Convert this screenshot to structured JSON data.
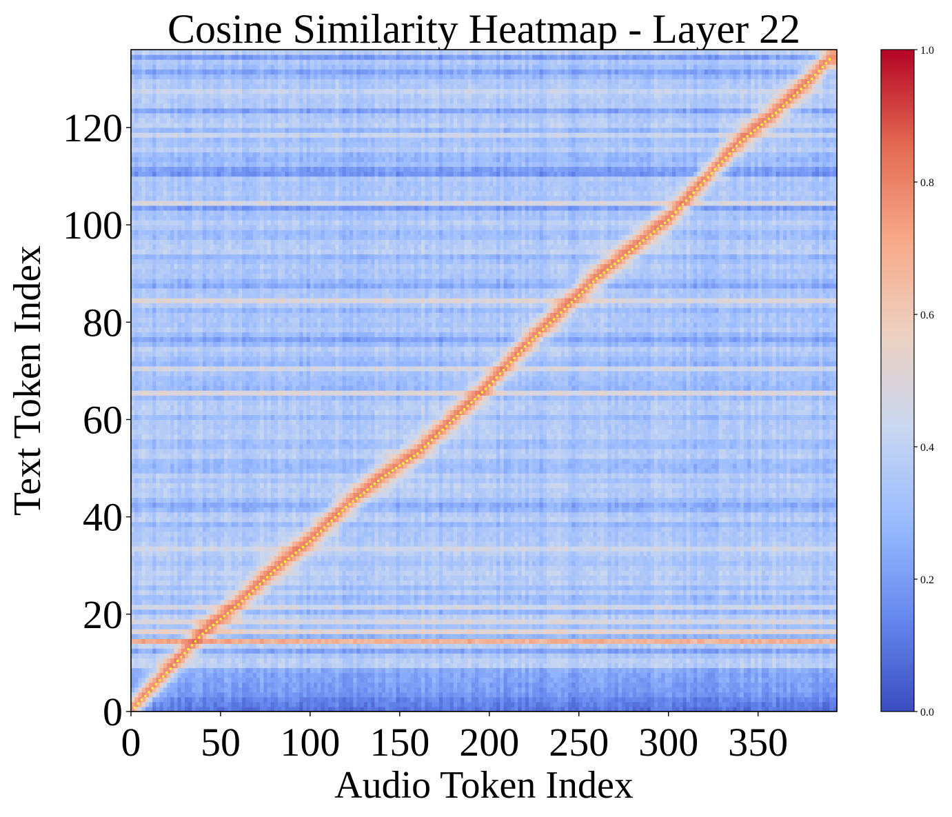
{
  "chart_data": {
    "type": "heatmap",
    "title": "Cosine Similarity Heatmap - Layer 22",
    "xlabel": "Audio Token Index",
    "ylabel": "Text Token Index",
    "x_range": [
      0,
      394
    ],
    "y_range": [
      0,
      136
    ],
    "y_origin": "bottom",
    "x_ticks": [
      0,
      50,
      100,
      150,
      200,
      250,
      300,
      350
    ],
    "y_ticks": [
      0,
      20,
      40,
      60,
      80,
      100,
      120
    ],
    "colormap": "coolwarm",
    "colormap_stops": [
      "#3b4cc0",
      "#6788ee",
      "#9abbff",
      "#c9d7f0",
      "#edd1c2",
      "#f7a889",
      "#e26952",
      "#b40426"
    ],
    "colorbar": {
      "vmin": 0.0,
      "vmax": 1.0,
      "ticks": [
        "0.0",
        "0.2",
        "0.4",
        "0.6",
        "0.8",
        "1.0"
      ]
    },
    "background_mean": 0.33,
    "diagonal_alignment": {
      "description_points_x": [
        0,
        20,
        40,
        60,
        80,
        100,
        120,
        140,
        160,
        180,
        200,
        220,
        240,
        260,
        280,
        300,
        320,
        340,
        360,
        380,
        390
      ],
      "description_points_y": [
        0,
        8,
        16,
        22,
        29,
        35,
        42,
        48,
        53,
        60,
        67,
        75,
        82,
        89,
        95,
        101,
        109,
        117,
        123,
        130,
        134
      ],
      "peak_value": 0.82,
      "marker_color": "#ffff33"
    },
    "highlighted_rows": [
      {
        "y": 14,
        "value": 0.68
      },
      {
        "y": 16,
        "value": 0.52
      },
      {
        "y": 18,
        "value": 0.48
      },
      {
        "y": 21,
        "value": 0.45
      },
      {
        "y": 33,
        "value": 0.45
      },
      {
        "y": 65,
        "value": 0.5
      },
      {
        "y": 70,
        "value": 0.46
      },
      {
        "y": 84,
        "value": 0.5
      },
      {
        "y": 104,
        "value": 0.47
      },
      {
        "y": 118,
        "value": 0.43
      },
      {
        "y": 127,
        "value": 0.42
      }
    ],
    "dark_rows": [
      {
        "y": 0,
        "value": 0.1
      },
      {
        "y": 1,
        "value": 0.12
      },
      {
        "y": 2,
        "value": 0.14
      },
      {
        "y": 3,
        "value": 0.18
      },
      {
        "y": 4,
        "value": 0.2
      },
      {
        "y": 5,
        "value": 0.2
      },
      {
        "y": 6,
        "value": 0.22
      },
      {
        "y": 7,
        "value": 0.22
      },
      {
        "y": 8,
        "value": 0.24
      },
      {
        "y": 12,
        "value": 0.22
      },
      {
        "y": 42,
        "value": 0.24
      },
      {
        "y": 76,
        "value": 0.22
      },
      {
        "y": 87,
        "value": 0.24
      },
      {
        "y": 103,
        "value": 0.2
      },
      {
        "y": 110,
        "value": 0.18
      },
      {
        "y": 111,
        "value": 0.2
      },
      {
        "y": 123,
        "value": 0.22
      },
      {
        "y": 131,
        "value": 0.22
      },
      {
        "y": 134,
        "value": 0.2
      }
    ]
  }
}
